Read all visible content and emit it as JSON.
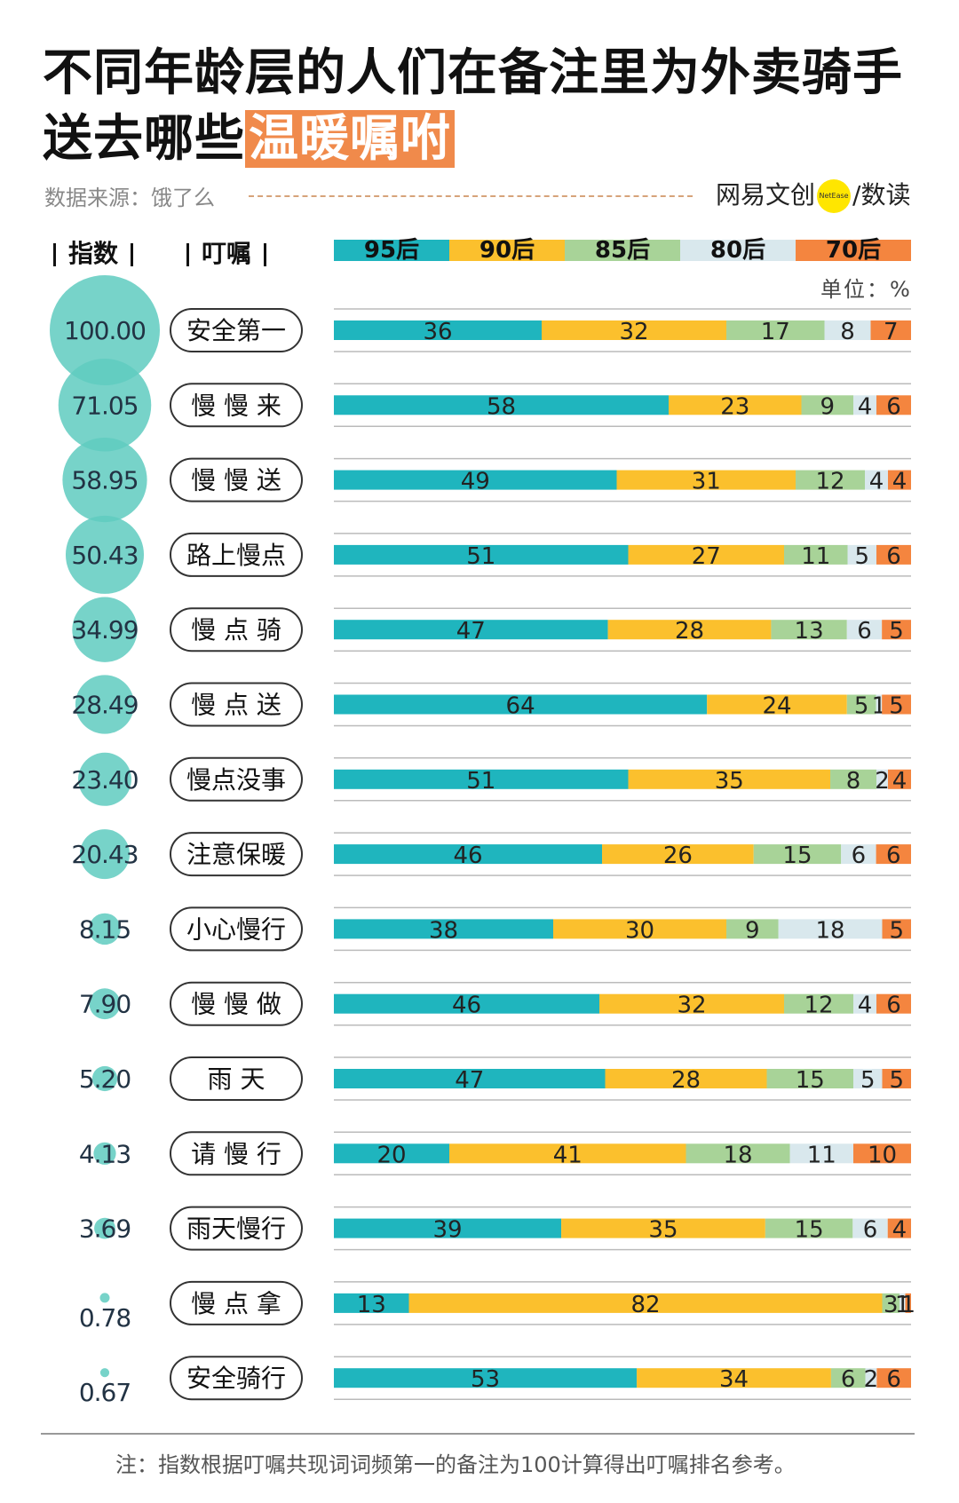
{
  "title_line1": "不同年龄层的人们在备注里为外卖骑手",
  "title_line2": "送去哪些",
  "title_highlight": "温暖嘱咐",
  "source": "数据来源：饿了么",
  "brand": {
    "left": "网易文创",
    "badge": "NetEase",
    "sep": "/",
    "right": "数读"
  },
  "header_index": "指数",
  "header_note": "叮嘱",
  "unit": "单位：%",
  "footnote": "注：指数根据叮嘱共现词词频第一的备注为100计算得出叮嘱排名参考。",
  "colors": {
    "95后": "#1fb5be",
    "90后": "#fbc02d",
    "85后": "#a8d398",
    "80后": "#d9e8ed",
    "70后": "#f4853f",
    "bubble": "#5fcbc0"
  },
  "chart_data": {
    "type": "bar",
    "stacked": true,
    "series_names": [
      "95后",
      "90后",
      "85后",
      "80后",
      "70后"
    ],
    "rows": [
      {
        "label": "安全第一",
        "index": "100.00",
        "values": [
          36,
          32,
          17,
          8,
          7
        ]
      },
      {
        "label": "慢 慢 来",
        "index": "71.05",
        "values": [
          58,
          23,
          9,
          4,
          6
        ]
      },
      {
        "label": "慢 慢 送",
        "index": "58.95",
        "values": [
          49,
          31,
          12,
          4,
          4
        ]
      },
      {
        "label": "路上慢点",
        "index": "50.43",
        "values": [
          51,
          27,
          11,
          5,
          6
        ]
      },
      {
        "label": "慢 点 骑",
        "index": "34.99",
        "values": [
          47,
          28,
          13,
          6,
          5
        ]
      },
      {
        "label": "慢 点 送",
        "index": "28.49",
        "values": [
          64,
          24,
          5,
          1,
          5
        ]
      },
      {
        "label": "慢点没事",
        "index": "23.40",
        "values": [
          51,
          35,
          8,
          2,
          4
        ]
      },
      {
        "label": "注意保暖",
        "index": "20.43",
        "values": [
          46,
          26,
          15,
          6,
          6
        ]
      },
      {
        "label": "小心慢行",
        "index": "8.15",
        "values": [
          38,
          30,
          9,
          18,
          5
        ]
      },
      {
        "label": "慢 慢 做",
        "index": "7.90",
        "values": [
          46,
          32,
          12,
          4,
          6
        ]
      },
      {
        "label": "雨      天",
        "index": "5.20",
        "values": [
          47,
          28,
          15,
          5,
          5
        ]
      },
      {
        "label": "请 慢 行",
        "index": "4.13",
        "values": [
          20,
          41,
          18,
          11,
          10
        ]
      },
      {
        "label": "雨天慢行",
        "index": "3.69",
        "values": [
          39,
          35,
          15,
          6,
          4
        ]
      },
      {
        "label": "慢 点 拿",
        "index": "0.78",
        "values": [
          13,
          82,
          3,
          1,
          1
        ]
      },
      {
        "label": "安全骑行",
        "index": "0.67",
        "values": [
          53,
          34,
          6,
          2,
          6
        ]
      }
    ]
  }
}
